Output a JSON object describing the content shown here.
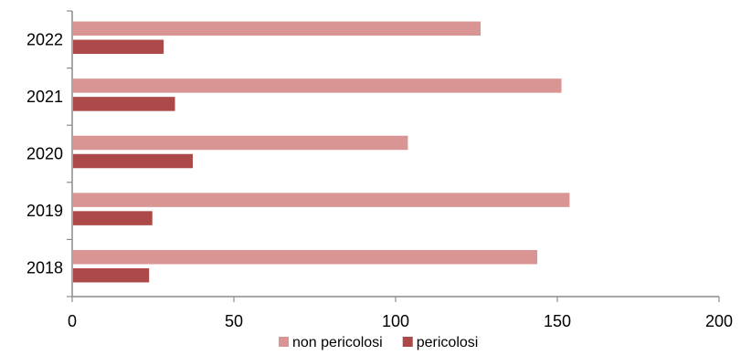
{
  "chart_data": {
    "type": "bar",
    "orientation": "horizontal",
    "title": "",
    "xlabel": "",
    "ylabel": "",
    "categories": [
      "2018",
      "2019",
      "2020",
      "2021",
      "2022"
    ],
    "series": [
      {
        "name": "non pericolosi",
        "color": "#d99594",
        "values": [
          143.5,
          153.5,
          103.5,
          151.0,
          126.0
        ]
      },
      {
        "name": "pericolosi",
        "color": "#ab4a48",
        "values": [
          23.5,
          24.5,
          37.0,
          31.5,
          28.0
        ]
      }
    ],
    "xlim": [
      0,
      200
    ],
    "xticks": [
      "0",
      "50",
      "100",
      "150",
      "200"
    ],
    "grid": false,
    "legend": "bottom"
  }
}
